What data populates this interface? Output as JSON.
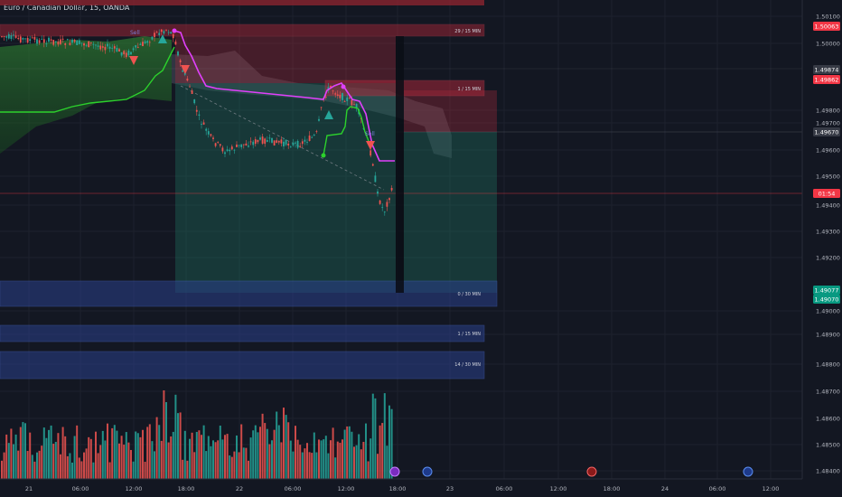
{
  "chart_data": {
    "type": "candlestick",
    "title": "Euro / Canadian Dollar, 15, OANDA",
    "y_axis": {
      "ticks": [
        "1.50100",
        "1.50000",
        "1.49800",
        "1.49700",
        "1.49600",
        "1.49500",
        "1.49400",
        "1.49300",
        "1.49200",
        "1.49000",
        "1.48900",
        "1.48800",
        "1.48700",
        "1.48600",
        "1.48500",
        "1.48400"
      ]
    },
    "x_axis": {
      "ticks": [
        "21",
        "06:00",
        "12:00",
        "18:00",
        "22",
        "06:00",
        "12:00",
        "18:00",
        "23",
        "06:00",
        "12:00",
        "18:00",
        "24",
        "06:00",
        "12:00"
      ]
    },
    "price_badges": [
      {
        "text": "1.50063",
        "color": "#f23645"
      },
      {
        "text": "1.49874",
        "color": "#363a45"
      },
      {
        "text": "1.49862",
        "color": "#f23645"
      },
      {
        "text": "1.49670",
        "color": "#363a45"
      },
      {
        "text": "01:54",
        "color": "#f23645"
      },
      {
        "text": "1.49077",
        "color": "#089981"
      },
      {
        "text": "1.49070",
        "color": "#089981"
      }
    ],
    "zones": [
      {
        "label": "29 / 15 MIN",
        "kind": "supply"
      },
      {
        "label": "1 / 15 MIN",
        "kind": "supply"
      },
      {
        "label": "0 / 30 MIN",
        "kind": "demand"
      },
      {
        "label": "1 / 15 MIN",
        "kind": "demand"
      },
      {
        "label": "14 / 30 MIN",
        "kind": "demand"
      }
    ],
    "annotations": [
      "Sell",
      "Sell"
    ],
    "colors": {
      "background": "#131722",
      "up": "#26a69a",
      "down": "#ef5350",
      "supply_zone": "#b2283a",
      "demand_zone": "#2a3f8a",
      "trend_line_magenta": "#e040fb",
      "trend_line_green": "#2cd12c"
    }
  }
}
